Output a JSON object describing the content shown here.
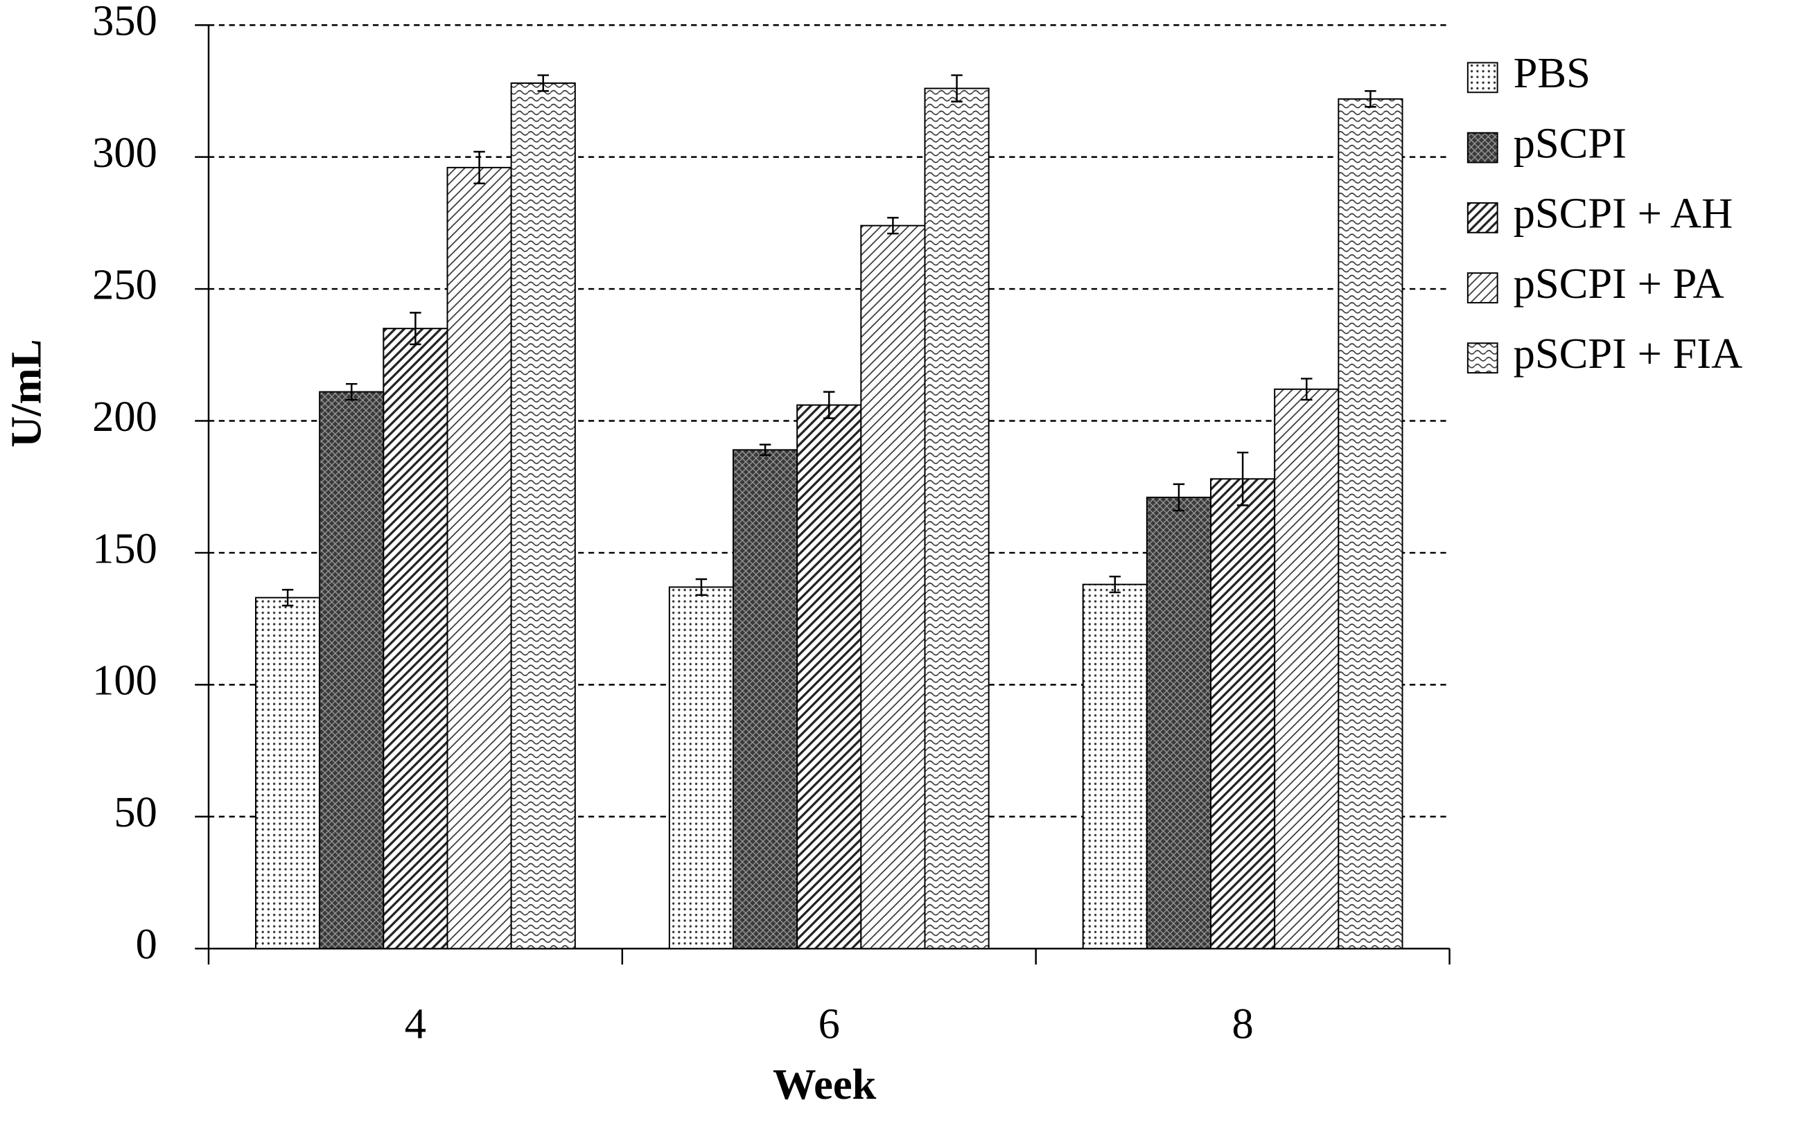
{
  "chart_data": {
    "type": "bar",
    "x_label": "Week",
    "y_label": "U/mL",
    "categories": [
      "4",
      "6",
      "8"
    ],
    "series": [
      {
        "name": "PBS",
        "color": "#ffffff",
        "pattern": "dots",
        "values": [
          133,
          137,
          138
        ],
        "errors": [
          3,
          3,
          3
        ]
      },
      {
        "name": "pSCPI",
        "color": "#3a3a3a",
        "pattern": "crosshatch",
        "values": [
          211,
          189,
          171
        ],
        "errors": [
          3,
          2,
          5
        ]
      },
      {
        "name": "pSCPI + AH",
        "color": "#ffffff",
        "pattern": "diagonal",
        "values": [
          235,
          206,
          178
        ],
        "errors": [
          6,
          5,
          10
        ]
      },
      {
        "name": "pSCPI + PA",
        "color": "#ffffff",
        "pattern": "diagonal-fine",
        "values": [
          296,
          274,
          212
        ],
        "errors": [
          6,
          3,
          4
        ]
      },
      {
        "name": "pSCPI + FIA",
        "color": "#ffffff",
        "pattern": "wave",
        "values": [
          328,
          326,
          322
        ],
        "errors": [
          3,
          5,
          3
        ]
      }
    ],
    "ylim": [
      0,
      350
    ],
    "yticks": [
      0,
      50,
      100,
      150,
      200,
      250,
      300,
      350
    ],
    "grid": true,
    "legend": "right"
  }
}
